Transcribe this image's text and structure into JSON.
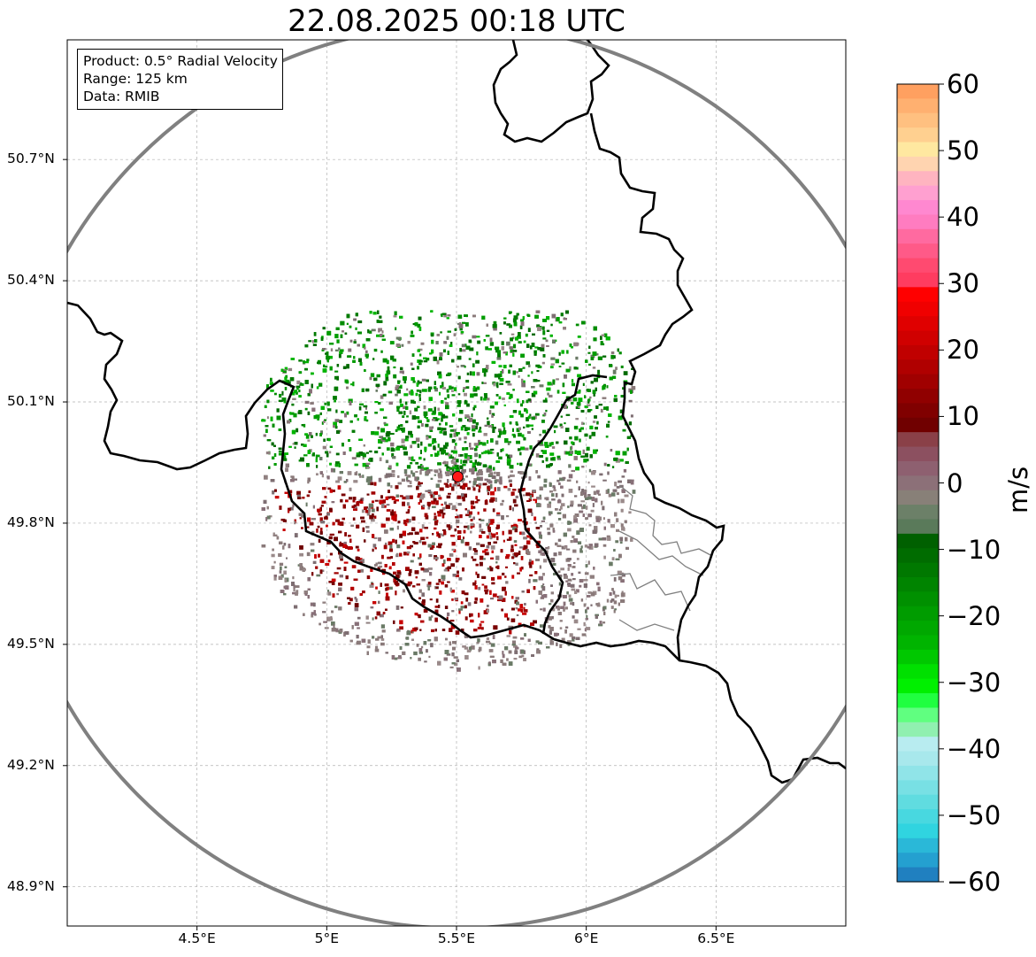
{
  "title": "22.08.2025 00:18 UTC",
  "info": {
    "product": "Product: 0.5° Radial Velocity",
    "range": "Range: 125 km",
    "source": "Data: RMIB"
  },
  "axes": {
    "lat_labels": [
      "50.7°N",
      "50.4°N",
      "50.1°N",
      "49.8°N",
      "49.5°N",
      "49.2°N",
      "48.9°N"
    ],
    "lat_values": [
      50.7,
      50.4,
      50.1,
      49.8,
      49.5,
      49.2,
      48.9
    ],
    "lon_labels": [
      "4.5°E",
      "5°E",
      "5.5°E",
      "6°E",
      "6.5°E"
    ],
    "lon_values": [
      4.5,
      5.0,
      5.5,
      6.0,
      6.5
    ],
    "lon_range": [
      4.0,
      7.0
    ],
    "lat_range": [
      48.8,
      51.0
    ]
  },
  "radar": {
    "lon": 5.505,
    "lat": 49.915,
    "range_km": 125
  },
  "colorbar": {
    "label": "m/s",
    "min": -60,
    "max": 60,
    "tick_values": [
      60,
      50,
      40,
      30,
      20,
      10,
      0,
      -10,
      -20,
      -30,
      -40,
      -50,
      -60
    ],
    "tick_labels": [
      "60",
      "50",
      "40",
      "30",
      "20",
      "10",
      "0",
      "−10",
      "−20",
      "−30",
      "−40",
      "−50",
      "−60"
    ],
    "colors_top_to_bottom": [
      "#ffa060",
      "#ffb070",
      "#ffc080",
      "#ffd090",
      "#ffe8a0",
      "#ffd4b0",
      "#ffb4c0",
      "#ffa0d0",
      "#ff88d0",
      "#ff7cc0",
      "#ff6aa0",
      "#ff5a88",
      "#ff4a70",
      "#ff3c60",
      "#ff0000",
      "#f00000",
      "#e00000",
      "#d00000",
      "#c00000",
      "#b00000",
      "#a00000",
      "#900000",
      "#800000",
      "#700000",
      "#8a4048",
      "#8c5060",
      "#8e6070",
      "#8c7078",
      "#888078",
      "#6c8068",
      "#5a7a5a",
      "#006000",
      "#006c00",
      "#007800",
      "#008400",
      "#009000",
      "#009c00",
      "#00a800",
      "#00b400",
      "#00c800",
      "#00e000",
      "#00f000",
      "#20ff40",
      "#60ff80",
      "#90f0b0",
      "#b8ecf0",
      "#a8e8ec",
      "#90e4e8",
      "#78e0e4",
      "#60dce0",
      "#48d8e0",
      "#30d4e0",
      "#2ab8d8",
      "#24a0d0",
      "#2080c0"
    ]
  }
}
